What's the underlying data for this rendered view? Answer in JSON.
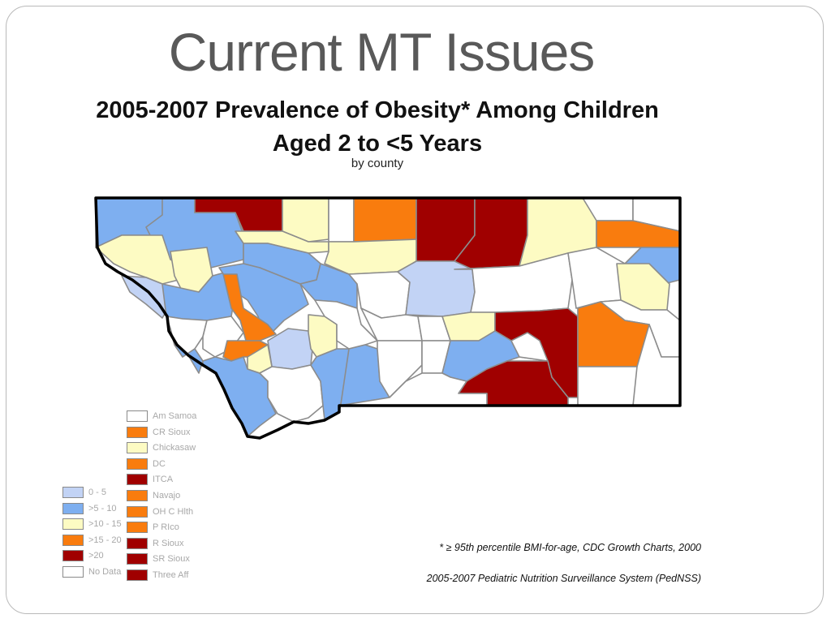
{
  "slide": {
    "title": "Current MT Issues"
  },
  "map": {
    "title_line1": "2005-2007 Prevalence of Obesity* Among Children",
    "title_line2": "Aged 2 to <5 Years",
    "subtitle": "by county",
    "region": "Montana"
  },
  "colors": {
    "0-5": "#c2d3f5",
    ">5-10": "#7eaff0",
    ">10-15": "#fdfbc3",
    ">15-20": "#f97c0e",
    ">20": "#a00000",
    "no_data": "#ffffff",
    "border": "#8c8c8c",
    "state_border": "#000000"
  },
  "legend_ranges": [
    {
      "label": "0 - 5",
      "color": "#c2d3f5"
    },
    {
      "label": ">5 - 10",
      "color": "#7eaff0"
    },
    {
      "label": ">10 - 15",
      "color": "#fdfbc3"
    },
    {
      "label": ">15 - 20",
      "color": "#f97c0e"
    },
    {
      "label": ">20",
      "color": "#a00000"
    },
    {
      "label": "No Data",
      "color": "#ffffff"
    }
  ],
  "legend_tribes": [
    {
      "label": "Am Samoa",
      "color": "#ffffff"
    },
    {
      "label": "CR Sioux",
      "color": "#f97c0e"
    },
    {
      "label": "Chickasaw",
      "color": "#fdfbc3"
    },
    {
      "label": "DC",
      "color": "#f97c0e"
    },
    {
      "label": "ITCA",
      "color": "#a00000"
    },
    {
      "label": "Navajo",
      "color": "#f97c0e"
    },
    {
      "label": "OH C Hlth",
      "color": "#f97c0e"
    },
    {
      "label": "P RIco",
      "color": "#f97c0e"
    },
    {
      "label": "R Sioux",
      "color": "#a00000"
    },
    {
      "label": "SR Sioux",
      "color": "#a00000"
    },
    {
      "label": "Three Aff",
      "color": "#a00000"
    }
  ],
  "footnotes": {
    "line1": "* ≥ 95th percentile BMI-for-age, CDC Growth Charts, 2000",
    "line2": "2005-2007 Pediatric Nutrition Surveillance System (PedNSS)"
  }
}
